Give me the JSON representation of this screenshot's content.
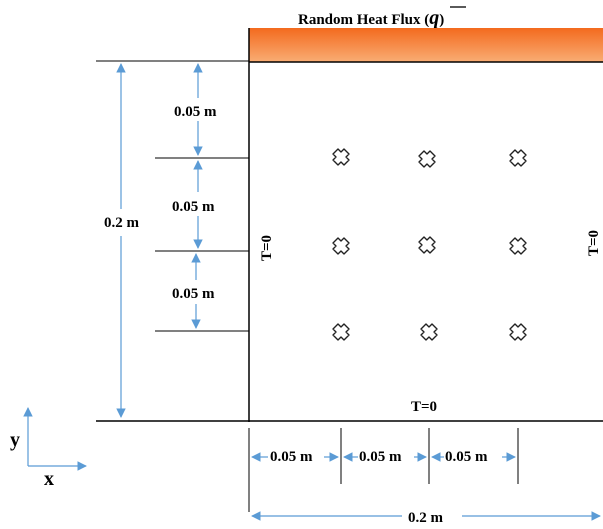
{
  "title": {
    "prefix": "Random Heat Flux (",
    "symbol": "q",
    "suffix": ")"
  },
  "boundaries": {
    "left": "T=0",
    "right": "T=0",
    "bottom": "T=0"
  },
  "dimensions": {
    "vertical_total": "0.2 m",
    "vertical_segments": [
      "0.05 m",
      "0.05 m",
      "0.05 m"
    ],
    "horizontal_total": "0.2 m",
    "horizontal_segments": [
      "0.05 m",
      "0.05 m",
      "0.05 m"
    ]
  },
  "axes": {
    "x": "x",
    "y": "y"
  },
  "sensors": {
    "rows": 3,
    "cols": 3,
    "icon": "cross-marker-icon"
  },
  "colors": {
    "flux_top": "#f05a10",
    "flux_bottom": "#f8a66a",
    "dimension_line": "#5b9bd5",
    "domain_border": "#000000"
  }
}
